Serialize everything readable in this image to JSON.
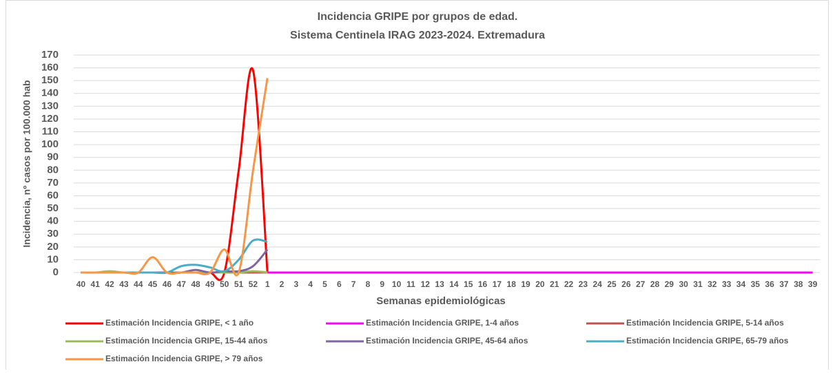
{
  "chart_data": {
    "type": "line",
    "title": "Incidencia GRIPE por grupos de edad.",
    "subtitle": "Sistema Centinela IRAG 2023-2024. Extremadura",
    "x_label": "Semanas epidemiológicas",
    "y_label": "Incidencia, nº casos por 100.000 hab",
    "categories": [
      "40",
      "41",
      "42",
      "43",
      "44",
      "45",
      "46",
      "47",
      "48",
      "49",
      "50",
      "51",
      "52",
      "1",
      "2",
      "3",
      "4",
      "5",
      "6",
      "7",
      "8",
      "9",
      "10",
      "11",
      "12",
      "13",
      "14",
      "15",
      "16",
      "17",
      "18",
      "19",
      "20",
      "21",
      "22",
      "23",
      "24",
      "25",
      "26",
      "27",
      "28",
      "29",
      "30",
      "31",
      "32",
      "33",
      "34",
      "35",
      "36",
      "37",
      "38",
      "39"
    ],
    "ylim": [
      0,
      170
    ],
    "yticks": [
      0,
      10,
      20,
      30,
      40,
      50,
      60,
      70,
      80,
      90,
      100,
      110,
      120,
      130,
      140,
      150,
      160,
      170
    ],
    "grid": true,
    "legend": "bottom",
    "smooth": true,
    "series": [
      {
        "name": "Estimación Incidencia GRIPE, < 1 año",
        "color": "#ff0000",
        "values": [
          0,
          0,
          0,
          0,
          0,
          0,
          0,
          0,
          0,
          0,
          0,
          80,
          158,
          0,
          null,
          null,
          null,
          null,
          null,
          null,
          null,
          null,
          null,
          null,
          null,
          null,
          null,
          null,
          null,
          null,
          null,
          null,
          null,
          null,
          null,
          null,
          null,
          null,
          null,
          null,
          null,
          null,
          null,
          null,
          null,
          null,
          null,
          null,
          null,
          null,
          null,
          null
        ]
      },
      {
        "name": "Estimación Incidencia GRIPE, 1-4 años",
        "color": "#ff00ff",
        "values": [
          0,
          0,
          0,
          0,
          0,
          0,
          0,
          0,
          0,
          0,
          0,
          0,
          0,
          0,
          0,
          0,
          0,
          0,
          0,
          0,
          0,
          0,
          0,
          0,
          0,
          0,
          0,
          0,
          0,
          0,
          0,
          0,
          0,
          0,
          0,
          0,
          0,
          0,
          0,
          0,
          0,
          0,
          0,
          0,
          0,
          0,
          0,
          0,
          0,
          0,
          0,
          0
        ]
      },
      {
        "name": "Estimación Incidencia GRIPE, 5-14 años",
        "color": "#c0504d",
        "values": [
          0,
          0,
          0,
          0,
          0,
          0,
          0,
          0,
          0,
          0,
          0,
          0,
          0,
          0,
          null,
          null,
          null,
          null,
          null,
          null,
          null,
          null,
          null,
          null,
          null,
          null,
          null,
          null,
          null,
          null,
          null,
          null,
          null,
          null,
          null,
          null,
          null,
          null,
          null,
          null,
          null,
          null,
          null,
          null,
          null,
          null,
          null,
          null,
          null,
          null,
          null,
          null
        ]
      },
      {
        "name": "Estimación Incidencia GRIPE, 15-44 años",
        "color": "#9bbb59",
        "values": [
          0,
          0,
          1,
          0,
          0,
          0,
          0,
          0,
          0,
          0,
          0,
          0,
          1,
          0,
          null,
          null,
          null,
          null,
          null,
          null,
          null,
          null,
          null,
          null,
          null,
          null,
          null,
          null,
          null,
          null,
          null,
          null,
          null,
          null,
          null,
          null,
          null,
          null,
          null,
          null,
          null,
          null,
          null,
          null,
          null,
          null,
          null,
          null,
          null,
          null,
          null,
          null
        ]
      },
      {
        "name": "Estimación Incidencia GRIPE, 45-64 años",
        "color": "#8064a2",
        "values": [
          0,
          0,
          0,
          0,
          0,
          0,
          0,
          0,
          2,
          0,
          1,
          1,
          5,
          18,
          null,
          null,
          null,
          null,
          null,
          null,
          null,
          null,
          null,
          null,
          null,
          null,
          null,
          null,
          null,
          null,
          null,
          null,
          null,
          null,
          null,
          null,
          null,
          null,
          null,
          null,
          null,
          null,
          null,
          null,
          null,
          null,
          null,
          null,
          null,
          null,
          null,
          null
        ]
      },
      {
        "name": "Estimación Incidencia GRIPE, 65-79 años",
        "color": "#4bacc6",
        "values": [
          0,
          0,
          0,
          0,
          0,
          0,
          0,
          5,
          6,
          4,
          1,
          10,
          25,
          24,
          null,
          null,
          null,
          null,
          null,
          null,
          null,
          null,
          null,
          null,
          null,
          null,
          null,
          null,
          null,
          null,
          null,
          null,
          null,
          null,
          null,
          null,
          null,
          null,
          null,
          null,
          null,
          null,
          null,
          null,
          null,
          null,
          null,
          null,
          null,
          null,
          null,
          null
        ]
      },
      {
        "name": "Estimación Incidencia GRIPE, > 79 años",
        "color": "#f79646",
        "values": [
          0,
          0,
          0,
          0,
          0,
          12,
          0,
          0,
          0,
          0,
          18,
          0,
          80,
          152,
          null,
          null,
          null,
          null,
          null,
          null,
          null,
          null,
          null,
          null,
          null,
          null,
          null,
          null,
          null,
          null,
          null,
          null,
          null,
          null,
          null,
          null,
          null,
          null,
          null,
          null,
          null,
          null,
          null,
          null,
          null,
          null,
          null,
          null,
          null,
          null,
          null,
          null
        ]
      }
    ]
  }
}
